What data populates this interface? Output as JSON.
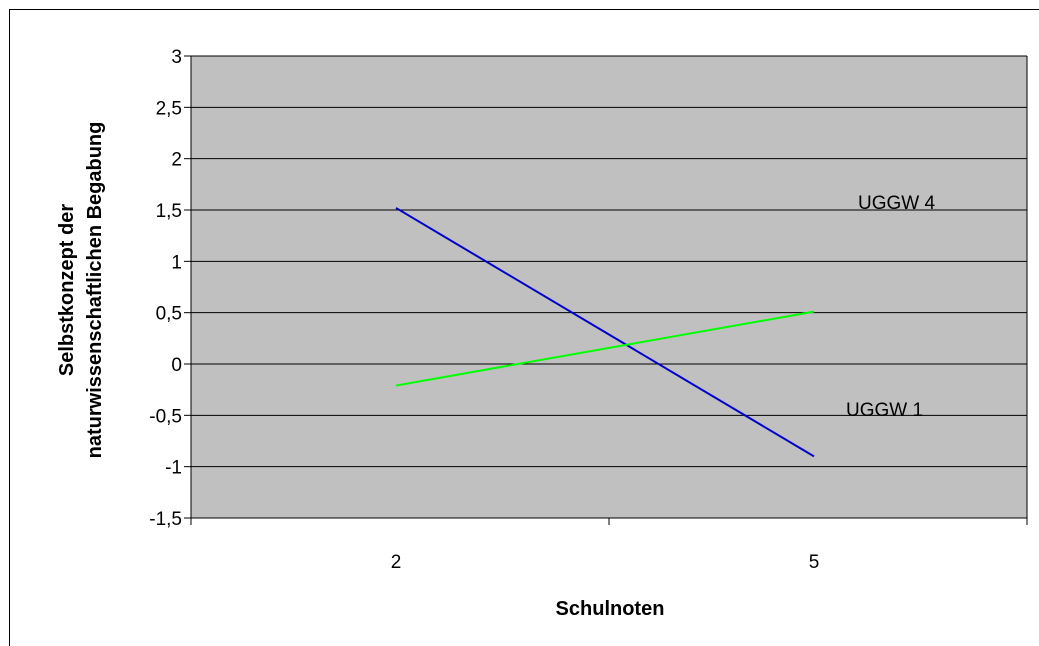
{
  "chart_data": {
    "type": "line",
    "title": "",
    "xlabel": "Schulnoten",
    "ylabel_lines": [
      "Selbstkonzept der",
      "naturwissenschaftlichen Begabung"
    ],
    "categories": [
      "2",
      "5"
    ],
    "series": [
      {
        "name": "UGGW 1",
        "color": "#0000cc",
        "values": [
          1.52,
          -0.9
        ]
      },
      {
        "name": "UGGW 4",
        "color": "#00ff00",
        "values": [
          -0.21,
          0.51
        ]
      }
    ],
    "ylim": [
      -1.5,
      3
    ],
    "yticks": [
      3,
      2.5,
      2,
      1.5,
      1,
      0.5,
      0,
      -0.5,
      -1,
      -1.5
    ],
    "ytick_labels": [
      "3",
      "2,5",
      "2",
      "1,5",
      "1",
      "0,5",
      "0",
      "-0,5",
      "-1",
      "-1,5"
    ],
    "grid": true,
    "plot_background": "#c0c0c0",
    "legend": "inline-labels"
  }
}
